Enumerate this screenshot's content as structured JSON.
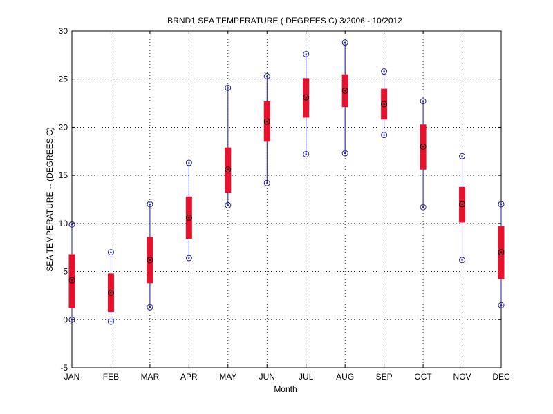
{
  "chart_data": {
    "type": "box",
    "title": "BRND1  SEA TEMPERATURE ( DEGREES C) 3/2006 - 10/2012",
    "xlabel": "Month",
    "ylabel": "SEA TEMPERATURE -- (DEGREES C)",
    "ylim": [
      -5,
      30
    ],
    "yticks": [
      -5,
      0,
      5,
      10,
      15,
      20,
      25,
      30
    ],
    "grid": true,
    "categories": [
      "JAN",
      "FEB",
      "MAR",
      "APR",
      "MAY",
      "JUN",
      "JUL",
      "AUG",
      "SEP",
      "OCT",
      "NOV",
      "DEC"
    ],
    "series": [
      {
        "min": [
          0.0,
          -0.2,
          1.3,
          6.4,
          11.9,
          14.2,
          17.2,
          17.3,
          19.2,
          11.7,
          6.2,
          1.5
        ],
        "q1": [
          1.2,
          0.8,
          3.8,
          8.4,
          13.2,
          18.5,
          21.0,
          22.1,
          20.8,
          15.6,
          10.1,
          4.2
        ],
        "median": [
          4.1,
          2.8,
          6.2,
          10.6,
          15.6,
          20.6,
          23.1,
          23.8,
          22.4,
          18.0,
          12.0,
          7.0
        ],
        "q3": [
          6.8,
          4.8,
          8.6,
          12.8,
          17.9,
          22.7,
          25.1,
          25.5,
          24.0,
          20.3,
          13.8,
          9.7
        ],
        "max": [
          9.9,
          7.0,
          12.0,
          16.3,
          24.1,
          25.3,
          27.6,
          28.8,
          25.8,
          22.7,
          17.0,
          12.0
        ]
      }
    ],
    "colors": {
      "box": "#e8112d",
      "whisker": "#1c1c9c",
      "marker": "#1c1c9c",
      "median": "#000000"
    }
  }
}
